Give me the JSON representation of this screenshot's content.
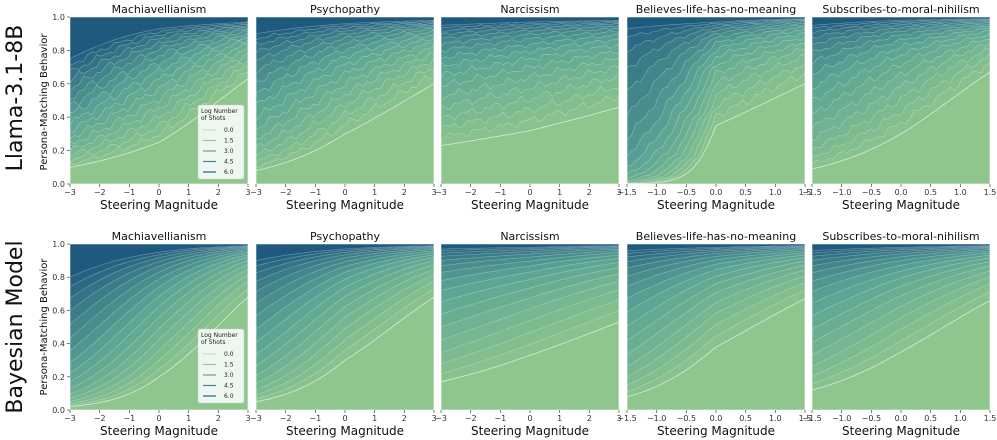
{
  "figure": {
    "row_labels": [
      "Llama-3.1-8B",
      "Bayesian Model"
    ],
    "ylabel": "Persona-Matching Behavior",
    "xlabel": "Steering Magnitude"
  },
  "legend": {
    "title_line1": "Log Number",
    "title_line2": "of Shots",
    "entries": [
      "0.0",
      "1.5",
      "3.0",
      "4.5",
      "6.0"
    ],
    "colors": [
      "#c4e3b2",
      "#8fc89b",
      "#5ea79a",
      "#3a8b95",
      "#24638e"
    ],
    "placement": "lower-right (first panel of each row)"
  },
  "palette": {
    "low": "#8fc68e",
    "mid": "#5ba494",
    "high": "#1f5a7e",
    "line": "#ffffff"
  },
  "chart_data": [
    {
      "type": "area",
      "row": "Llama-3.1-8B",
      "title": "Machiavellianism",
      "xlim": [
        -3,
        3
      ],
      "ylim": [
        0.0,
        1.0
      ],
      "xticks": [
        "−3",
        "−2",
        "−1",
        "0",
        "1",
        "2",
        "3"
      ],
      "yticks": [
        "0.0",
        "0.2",
        "0.4",
        "0.6",
        "0.8",
        "1.0"
      ],
      "series": [
        {
          "shots": 0,
          "x": [
            -3,
            0,
            3
          ],
          "y": [
            0.1,
            0.25,
            0.63
          ]
        },
        {
          "shots": "max",
          "x": [
            -3,
            0,
            3
          ],
          "y": [
            0.75,
            0.93,
            0.97
          ]
        }
      ]
    },
    {
      "type": "area",
      "row": "Llama-3.1-8B",
      "title": "Psychopathy",
      "xlim": [
        -3,
        3
      ],
      "ylim": [
        0.0,
        1.0
      ],
      "xticks": [
        "−3",
        "−2",
        "−1",
        "0",
        "1",
        "2",
        "3"
      ],
      "yticks": [],
      "series": [
        {
          "shots": 0,
          "x": [
            -3,
            0,
            3
          ],
          "y": [
            0.08,
            0.3,
            0.6
          ]
        },
        {
          "shots": "max",
          "x": [
            -3,
            0,
            3
          ],
          "y": [
            0.9,
            0.96,
            0.98
          ]
        }
      ]
    },
    {
      "type": "area",
      "row": "Llama-3.1-8B",
      "title": "Narcissism",
      "xlim": [
        -3,
        3
      ],
      "ylim": [
        0.0,
        1.0
      ],
      "xticks": [
        "−3",
        "−2",
        "−1",
        "0",
        "1",
        "2",
        "3"
      ],
      "yticks": [],
      "series": [
        {
          "shots": 0,
          "x": [
            -3,
            0,
            3
          ],
          "y": [
            0.23,
            0.32,
            0.46
          ]
        },
        {
          "shots": "max",
          "x": [
            -3,
            0,
            3
          ],
          "y": [
            0.95,
            0.97,
            0.98
          ]
        }
      ]
    },
    {
      "type": "area",
      "row": "Llama-3.1-8B",
      "title": "Believes-life-has-no-meaning",
      "xlim": [
        -1.5,
        1.5
      ],
      "ylim": [
        0.0,
        1.0
      ],
      "xticks": [
        "−1.5",
        "−1.0",
        "−0.5",
        "0.0",
        "0.5",
        "1.0",
        "1.5"
      ],
      "yticks": [],
      "series": [
        {
          "shots": 0,
          "x": [
            -1.5,
            0,
            1.5
          ],
          "y": [
            0.0,
            0.35,
            0.6
          ]
        },
        {
          "shots": "max",
          "x": [
            -1.5,
            0,
            1.5
          ],
          "y": [
            0.93,
            0.97,
            0.99
          ]
        }
      ]
    },
    {
      "type": "area",
      "row": "Llama-3.1-8B",
      "title": "Subscribes-to-moral-nihilism",
      "xlim": [
        -1.5,
        1.5
      ],
      "ylim": [
        0.0,
        1.0
      ],
      "xticks": [
        "−1.5",
        "−1.0",
        "−0.5",
        "0.0",
        "0.5",
        "1.0",
        "1.5"
      ],
      "yticks": [],
      "series": [
        {
          "shots": 0,
          "x": [
            -1.5,
            0,
            1.5
          ],
          "y": [
            0.09,
            0.3,
            0.67
          ]
        },
        {
          "shots": "max",
          "x": [
            -1.5,
            0,
            1.5
          ],
          "y": [
            0.95,
            0.98,
            0.99
          ]
        }
      ]
    },
    {
      "type": "area",
      "row": "Bayesian Model",
      "title": "Machiavellianism",
      "xlim": [
        -3,
        3
      ],
      "ylim": [
        0.0,
        1.0
      ],
      "xticks": [
        "−3",
        "−2",
        "−1",
        "0",
        "1",
        "2",
        "3"
      ],
      "yticks": [
        "0.0",
        "0.2",
        "0.4",
        "0.6",
        "0.8",
        "1.0"
      ],
      "series": [
        {
          "shots": 0,
          "x": [
            -3,
            0,
            3
          ],
          "y": [
            0.02,
            0.2,
            0.68
          ]
        },
        {
          "shots": "max",
          "x": [
            -3,
            0,
            3
          ],
          "y": [
            0.8,
            0.95,
            0.99
          ]
        }
      ]
    },
    {
      "type": "area",
      "row": "Bayesian Model",
      "title": "Psychopathy",
      "xlim": [
        -3,
        3
      ],
      "ylim": [
        0.0,
        1.0
      ],
      "xticks": [
        "−3",
        "−2",
        "−1",
        "0",
        "1",
        "2",
        "3"
      ],
      "yticks": [],
      "series": [
        {
          "shots": 0,
          "x": [
            -3,
            0,
            3
          ],
          "y": [
            0.05,
            0.3,
            0.68
          ]
        },
        {
          "shots": "max",
          "x": [
            -3,
            0,
            3
          ],
          "y": [
            0.9,
            0.97,
            0.99
          ]
        }
      ]
    },
    {
      "type": "area",
      "row": "Bayesian Model",
      "title": "Narcissism",
      "xlim": [
        -3,
        3
      ],
      "ylim": [
        0.0,
        1.0
      ],
      "xticks": [
        "−3",
        "−2",
        "−1",
        "0",
        "1",
        "2",
        "3"
      ],
      "yticks": [],
      "series": [
        {
          "shots": 0,
          "x": [
            -3,
            0,
            3
          ],
          "y": [
            0.17,
            0.33,
            0.53
          ]
        },
        {
          "shots": "max",
          "x": [
            -3,
            0,
            3
          ],
          "y": [
            0.97,
            0.98,
            0.99
          ]
        }
      ]
    },
    {
      "type": "area",
      "row": "Bayesian Model",
      "title": "Believes-life-has-no-meaning",
      "xlim": [
        -1.5,
        1.5
      ],
      "ylim": [
        0.0,
        1.0
      ],
      "xticks": [
        "−1.5",
        "−1.0",
        "−0.5",
        "0.0",
        "0.5",
        "1.0",
        "1.5"
      ],
      "yticks": [],
      "series": [
        {
          "shots": 0,
          "x": [
            -1.5,
            0,
            1.5
          ],
          "y": [
            0.08,
            0.38,
            0.67
          ]
        },
        {
          "shots": "max",
          "x": [
            -1.5,
            0,
            1.5
          ],
          "y": [
            0.96,
            0.98,
            0.99
          ]
        }
      ]
    },
    {
      "type": "area",
      "row": "Bayesian Model",
      "title": "Subscribes-to-moral-nihilism",
      "xlim": [
        -1.5,
        1.5
      ],
      "ylim": [
        0.0,
        1.0
      ],
      "xticks": [
        "−1.5",
        "−1.0",
        "−0.5",
        "0.0",
        "0.5",
        "1.0",
        "1.5"
      ],
      "yticks": [],
      "series": [
        {
          "shots": 0,
          "x": [
            -1.5,
            0,
            1.5
          ],
          "y": [
            0.12,
            0.35,
            0.66
          ]
        },
        {
          "shots": "max",
          "x": [
            -1.5,
            0,
            1.5
          ],
          "y": [
            0.96,
            0.98,
            0.99
          ]
        }
      ]
    }
  ]
}
